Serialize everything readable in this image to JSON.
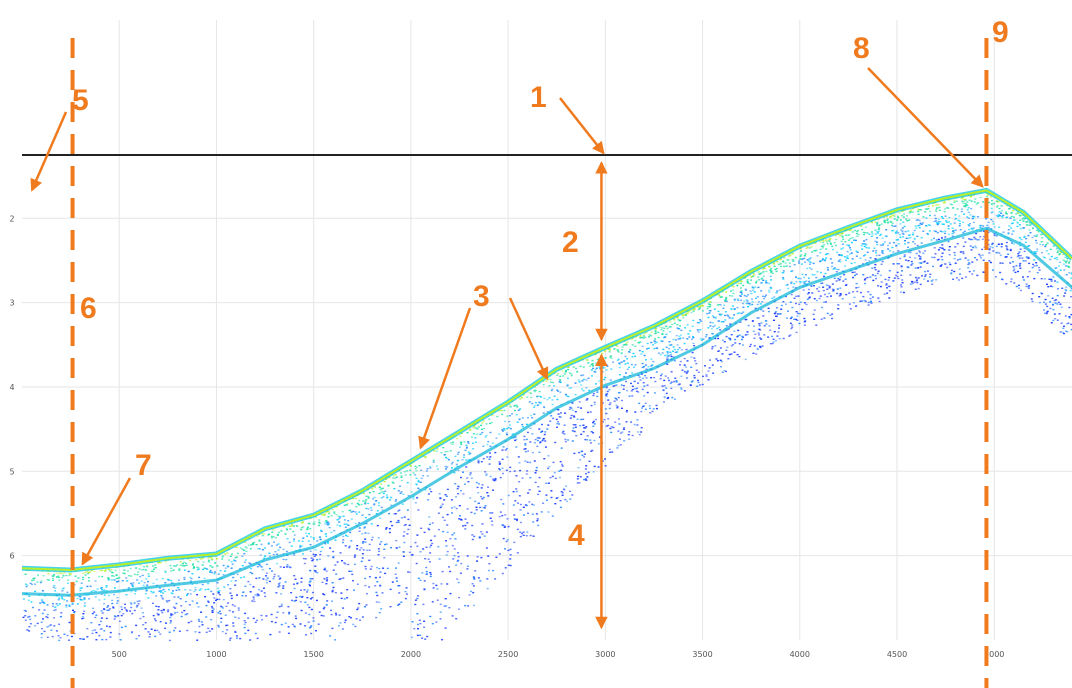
{
  "chart_data": {
    "type": "scatter",
    "title": "",
    "xlabel": "",
    "ylabel": "",
    "xlim": [
      0,
      5400
    ],
    "ylim": [
      7.0,
      1.25
    ],
    "y_inverted": true,
    "grid": true,
    "x_ticks": [
      "500",
      "1000",
      "1500",
      "2000",
      "2500",
      "3000",
      "3500",
      "4000",
      "4500",
      "5000"
    ],
    "y_ticks": [
      "2",
      "3",
      "4",
      "5",
      "6"
    ],
    "series": [
      {
        "role": "surface",
        "x": [
          0,
          250,
          500,
          750,
          1000,
          1250,
          1500,
          1750,
          2000,
          2250,
          2500,
          2750,
          3000,
          3250,
          3500,
          3750,
          4000,
          4250,
          4500,
          4750,
          4960,
          5150,
          5400
        ],
        "y": [
          6.15,
          6.17,
          6.11,
          6.03,
          5.98,
          5.68,
          5.52,
          5.23,
          4.88,
          4.53,
          4.18,
          3.79,
          3.53,
          3.28,
          2.98,
          2.63,
          2.33,
          2.11,
          1.9,
          1.76,
          1.67,
          1.93,
          2.48
        ]
      },
      {
        "role": "inner-layer",
        "x": [
          0,
          250,
          500,
          750,
          1000,
          1250,
          1500,
          1750,
          2000,
          2250,
          2500,
          2750,
          3000,
          3250,
          3500,
          3750,
          4000,
          4250,
          4500,
          4750,
          4960,
          5150,
          5400
        ],
        "y": [
          6.45,
          6.47,
          6.42,
          6.35,
          6.29,
          6.05,
          5.9,
          5.62,
          5.3,
          4.95,
          4.62,
          4.25,
          3.98,
          3.78,
          3.5,
          3.12,
          2.82,
          2.62,
          2.42,
          2.26,
          2.12,
          2.32,
          2.82
        ]
      }
    ],
    "annotations": [
      {
        "label": "1",
        "target_x": 2980,
        "target_y": 1.25
      },
      {
        "label": "2",
        "target_x": 2980,
        "target_y": [
          1.25,
          3.53
        ]
      },
      {
        "label": "3",
        "target_x": [
          2050,
          2700
        ],
        "target_y": [
          4.72,
          3.9
        ]
      },
      {
        "label": "4",
        "target_x": 2980,
        "target_y": [
          3.53,
          6.85
        ]
      },
      {
        "label": "5",
        "target_x": 0,
        "target_y": 2.0
      },
      {
        "label": "6",
        "vertical_line_x": 260
      },
      {
        "label": "7",
        "target_x": 260,
        "target_y": 6.17
      },
      {
        "label": "8",
        "target_x": 4960,
        "target_y": 1.67
      },
      {
        "label": "9",
        "vertical_line_x": 4960
      }
    ],
    "annotation_color": "#f07a1e",
    "baseline_y": 1.25,
    "colormap": [
      "#1a3dff",
      "#2a8cff",
      "#18d0ff",
      "#27e0a8",
      "#b8ef2a"
    ]
  }
}
